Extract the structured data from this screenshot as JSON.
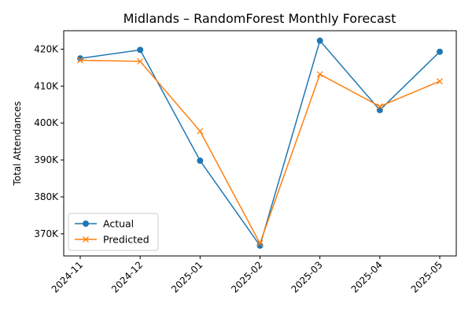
{
  "chart_data": {
    "type": "line",
    "title": "Midlands – RandomForest Monthly Forecast",
    "xlabel": "",
    "ylabel": "Total Attendances",
    "categories": [
      "2024-11",
      "2024-12",
      "2025-01",
      "2025-02",
      "2025-03",
      "2025-04",
      "2025-05"
    ],
    "yticks": [
      370000,
      380000,
      390000,
      400000,
      410000,
      420000
    ],
    "ytick_labels": [
      "370K",
      "380K",
      "390K",
      "400K",
      "410K",
      "420K"
    ],
    "ylim": [
      364000,
      425000
    ],
    "grid": false,
    "legend_position": "lower-left",
    "series": [
      {
        "name": "Actual",
        "marker": "circle",
        "color": "#1f77b4",
        "values": [
          417500,
          419800,
          389800,
          366800,
          422300,
          403500,
          419300
        ]
      },
      {
        "name": "Predicted",
        "marker": "x",
        "color": "#ff7f0e",
        "values": [
          417000,
          416700,
          397800,
          367400,
          413200,
          404500,
          411300
        ]
      }
    ]
  }
}
